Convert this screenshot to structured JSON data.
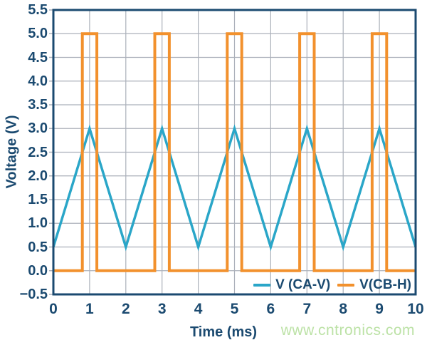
{
  "figure": {
    "background": "#FFFFFF",
    "watermark": {
      "text": "www.cntronics.com",
      "color": "#BCE2A6"
    }
  },
  "colors": {
    "frame": "#1B4A70",
    "grid": "#ABB0BA",
    "tick_label": "#1B4A70"
  },
  "chart_data": {
    "type": "line",
    "title": "",
    "xlabel": "Time (ms)",
    "ylabel": "Voltage (V)",
    "xlim": [
      0,
      10
    ],
    "ylim": [
      -0.5,
      5.5
    ],
    "grid": true,
    "legend_position": "inside-bottom-right",
    "xticks": [
      0,
      1,
      2,
      3,
      4,
      5,
      6,
      7,
      8,
      9,
      10
    ],
    "xtick_labels": [
      "0",
      "1",
      "2",
      "3",
      "4",
      "5",
      "6",
      "7",
      "8",
      "9",
      "10"
    ],
    "yticks": [
      5.5,
      5.0,
      4.5,
      4.0,
      3.5,
      3.0,
      2.5,
      2.0,
      1.5,
      1.0,
      0.5,
      0.0,
      -0.5
    ],
    "ytick_labels": [
      "5.5",
      "5.0",
      "4.5",
      "4.0",
      "3.5",
      "3.0",
      "2.5",
      "2.0",
      "1.5",
      "1.0",
      "0.5",
      "0.0",
      "−0.5"
    ],
    "series": [
      {
        "name": "V (CA-V)",
        "color": "#2AA6C8",
        "waveform": "triangle",
        "amplitude_low": 0.5,
        "amplitude_high": 3.0,
        "period_ms": 2,
        "points": [
          [
            0,
            0.5
          ],
          [
            1,
            3.0
          ],
          [
            2,
            0.5
          ],
          [
            3,
            3.0
          ],
          [
            4,
            0.5
          ],
          [
            5,
            3.0
          ],
          [
            6,
            0.5
          ],
          [
            7,
            3.0
          ],
          [
            8,
            0.5
          ],
          [
            9,
            3.0
          ],
          [
            10,
            0.5
          ]
        ]
      },
      {
        "name": "V(CB-H)",
        "color": "#F2912D",
        "waveform": "pulse",
        "amplitude_low": 0.0,
        "amplitude_high": 5.0,
        "period_ms": 2,
        "pulse_width_ms": 0.4,
        "points": [
          [
            0,
            0
          ],
          [
            0.8,
            0
          ],
          [
            0.8,
            5
          ],
          [
            1.2,
            5
          ],
          [
            1.2,
            0
          ],
          [
            2.8,
            0
          ],
          [
            2.8,
            5
          ],
          [
            3.2,
            5
          ],
          [
            3.2,
            0
          ],
          [
            4.8,
            0
          ],
          [
            4.8,
            5
          ],
          [
            5.2,
            5
          ],
          [
            5.2,
            0
          ],
          [
            6.8,
            0
          ],
          [
            6.8,
            5
          ],
          [
            7.2,
            5
          ],
          [
            7.2,
            0
          ],
          [
            8.8,
            0
          ],
          [
            8.8,
            5
          ],
          [
            9.2,
            5
          ],
          [
            9.2,
            0
          ],
          [
            10,
            0
          ]
        ]
      }
    ]
  }
}
